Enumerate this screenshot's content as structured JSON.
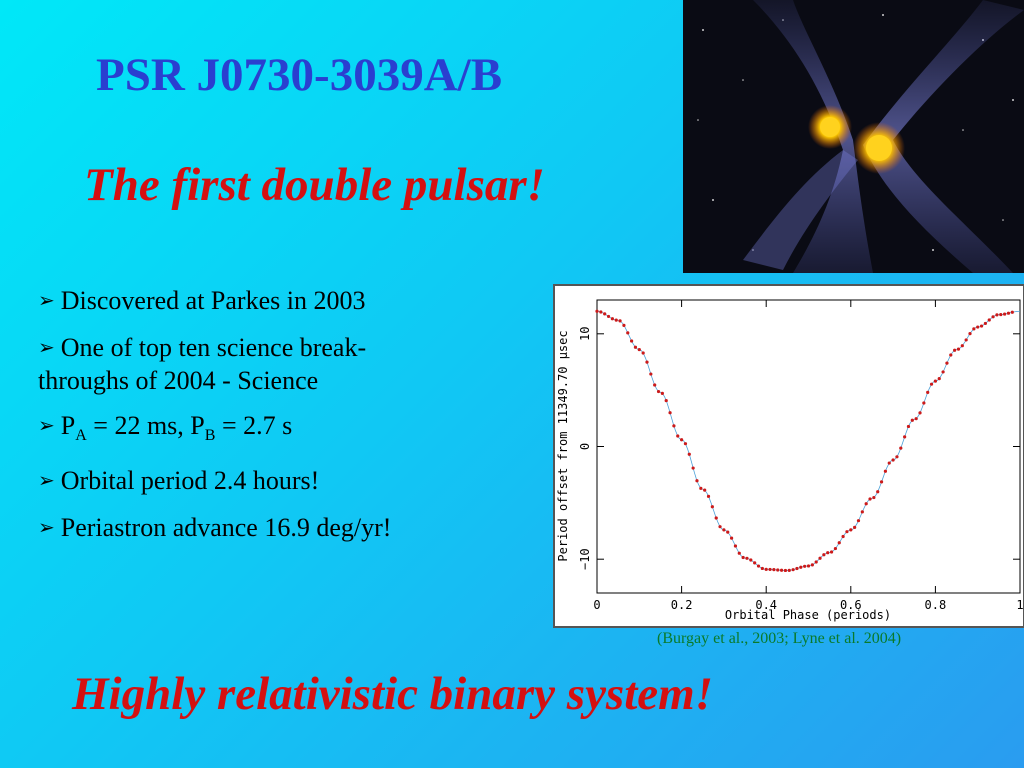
{
  "title": "PSR J0730-3039A/B",
  "subtitle": "The first double pulsar!",
  "bullets": [
    {
      "text": "Discovered at Parkes in 2003"
    },
    {
      "line1": "One of top ten science break-",
      "line2": "throughs of 2004 - Science"
    },
    {
      "pa_prefix": "P",
      "pa_sub": "A",
      "pa_value": " = 22 ms, P",
      "pb_sub": "B",
      "pb_value": " = 2.7 s"
    },
    {
      "text": "Orbital period 2.4 hours!"
    },
    {
      "text": "Periastron advance 16.9 deg/yr!"
    }
  ],
  "citation": "(Burgay et al., 2003; Lyne et al. 2004)",
  "conclusion": "Highly relativistic binary system!",
  "icon": "arrowhead-bullet",
  "colors": {
    "title": "#2a3fd0",
    "emphasis": "#d41010",
    "citation": "#0a7a2a",
    "points": "#cc1a1a"
  },
  "chart_data": {
    "type": "scatter",
    "xlabel": "Orbital Phase (periods)",
    "ylabel": "Period offset from 11349.70 μsec",
    "xlim": [
      0,
      1
    ],
    "ylim": [
      -13,
      13
    ],
    "xticks": [
      "0",
      "0.2",
      "0.4",
      "0.6",
      "0.8",
      "1"
    ],
    "yticks": [
      "10",
      "0",
      "−10"
    ],
    "series": [
      {
        "x": [
          0.0,
          0.05,
          0.1,
          0.15,
          0.2,
          0.25,
          0.3,
          0.35,
          0.4,
          0.45,
          0.5,
          0.55,
          0.6,
          0.65,
          0.7,
          0.75,
          0.8,
          0.85,
          0.9,
          0.95,
          1.0
        ],
        "y": [
          12,
          11.2,
          8.6,
          4.8,
          0.6,
          -3.8,
          -7.4,
          -9.9,
          -10.9,
          -11.0,
          -10.6,
          -9.4,
          -7.4,
          -4.6,
          -1.2,
          2.4,
          5.8,
          8.6,
          10.6,
          11.7,
          12
        ]
      }
    ]
  }
}
